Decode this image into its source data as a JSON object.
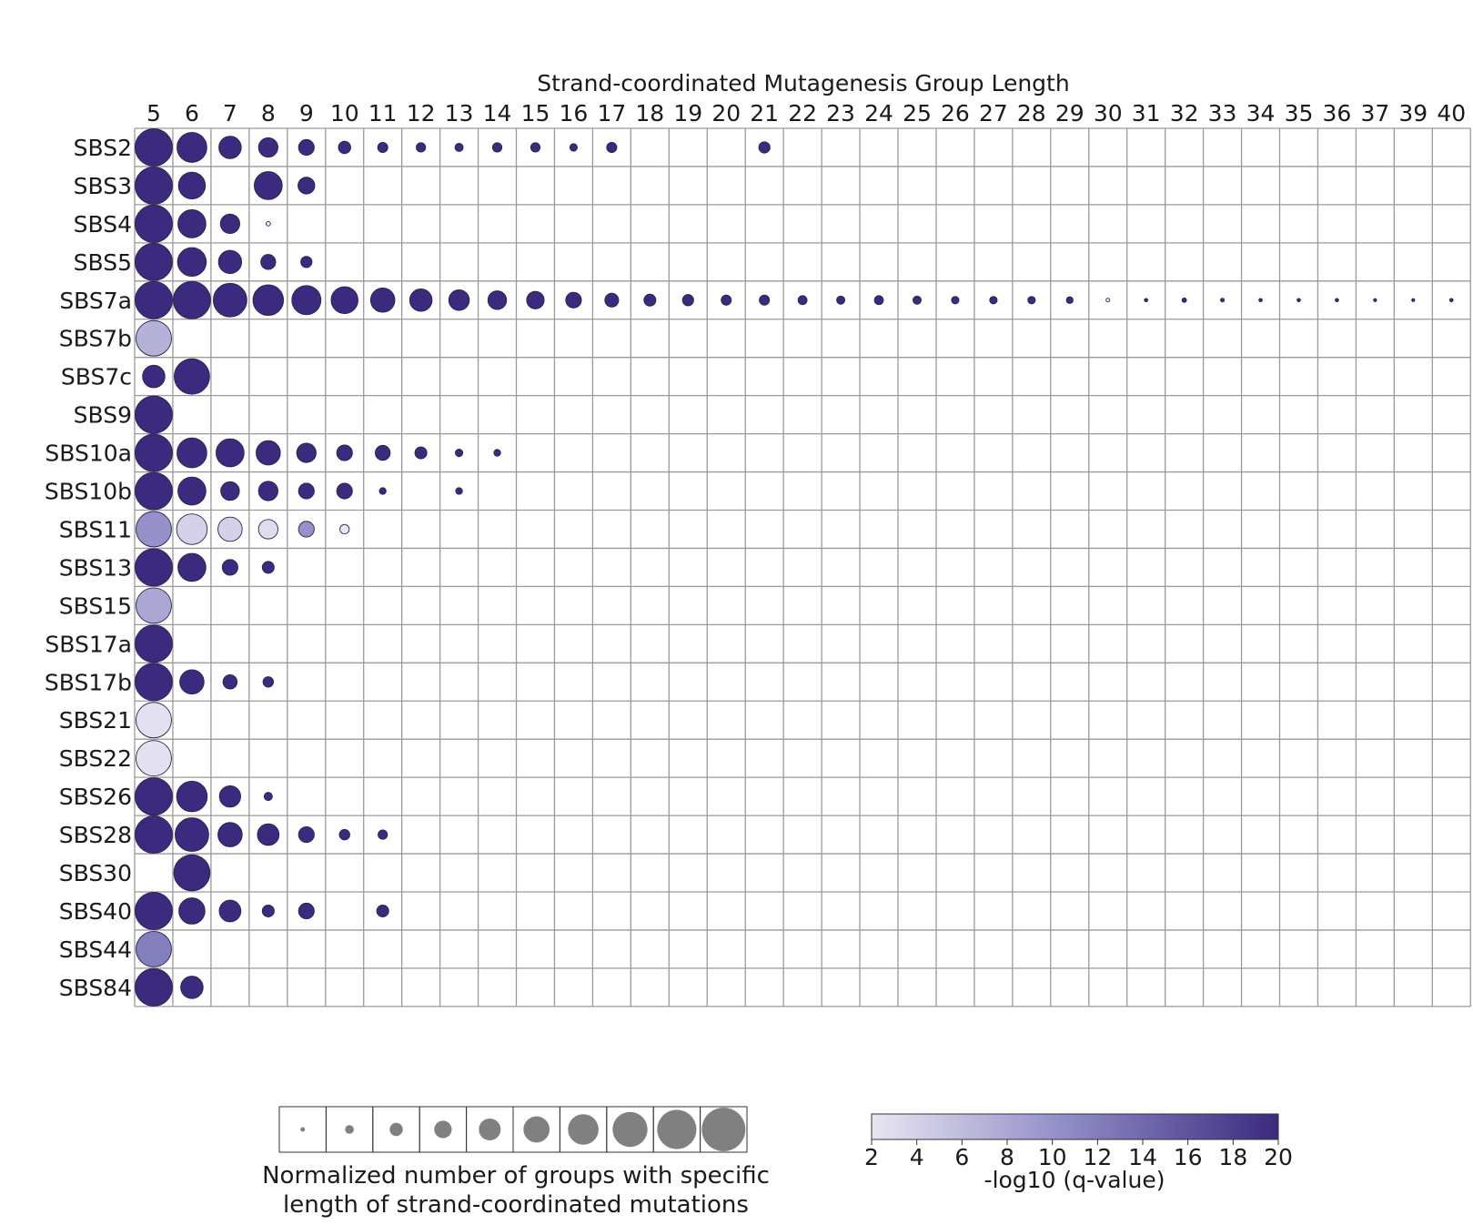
{
  "chart_data": {
    "type": "bubble-matrix",
    "title": "Strand-coordinated Mutagenesis Group Length",
    "x": [
      5,
      6,
      7,
      8,
      9,
      10,
      11,
      12,
      13,
      14,
      15,
      16,
      17,
      18,
      19,
      20,
      21,
      22,
      23,
      24,
      25,
      26,
      27,
      28,
      29,
      30,
      31,
      32,
      33,
      34,
      35,
      36,
      37,
      39,
      40
    ],
    "rows": [
      "SBS2",
      "SBS3",
      "SBS4",
      "SBS5",
      "SBS7a",
      "SBS7b",
      "SBS7c",
      "SBS9",
      "SBS10a",
      "SBS10b",
      "SBS11",
      "SBS13",
      "SBS15",
      "SBS17a",
      "SBS17b",
      "SBS21",
      "SBS22",
      "SBS26",
      "SBS28",
      "SBS30",
      "SBS40",
      "SBS44",
      "SBS84"
    ],
    "points_note": "each point: [row index, column index, normalized size 0-1, -log10(q-value)]",
    "points": [
      [
        0,
        0,
        1.0,
        20
      ],
      [
        0,
        1,
        0.8,
        20
      ],
      [
        0,
        2,
        0.6,
        20
      ],
      [
        0,
        3,
        0.52,
        20
      ],
      [
        0,
        4,
        0.42,
        20
      ],
      [
        0,
        5,
        0.33,
        20
      ],
      [
        0,
        6,
        0.27,
        20
      ],
      [
        0,
        7,
        0.25,
        20
      ],
      [
        0,
        8,
        0.22,
        20
      ],
      [
        0,
        9,
        0.25,
        20
      ],
      [
        0,
        10,
        0.25,
        20
      ],
      [
        0,
        11,
        0.2,
        20
      ],
      [
        0,
        12,
        0.27,
        20
      ],
      [
        0,
        16,
        0.3,
        20
      ],
      [
        1,
        0,
        1.0,
        20
      ],
      [
        1,
        1,
        0.72,
        20
      ],
      [
        1,
        3,
        0.75,
        20
      ],
      [
        1,
        4,
        0.45,
        20
      ],
      [
        2,
        0,
        1.0,
        20
      ],
      [
        2,
        1,
        0.75,
        20
      ],
      [
        2,
        2,
        0.52,
        20
      ],
      [
        2,
        3,
        0.12,
        2
      ],
      [
        3,
        0,
        1.0,
        20
      ],
      [
        3,
        1,
        0.77,
        20
      ],
      [
        3,
        2,
        0.62,
        20
      ],
      [
        3,
        3,
        0.4,
        20
      ],
      [
        3,
        4,
        0.3,
        20
      ],
      [
        4,
        0,
        1.0,
        20
      ],
      [
        4,
        1,
        1.0,
        20
      ],
      [
        4,
        2,
        0.9,
        20
      ],
      [
        4,
        3,
        0.82,
        20
      ],
      [
        4,
        4,
        0.78,
        20
      ],
      [
        4,
        5,
        0.72,
        20
      ],
      [
        4,
        6,
        0.65,
        20
      ],
      [
        4,
        7,
        0.6,
        20
      ],
      [
        4,
        8,
        0.55,
        20
      ],
      [
        4,
        9,
        0.5,
        20
      ],
      [
        4,
        10,
        0.47,
        20
      ],
      [
        4,
        11,
        0.42,
        20
      ],
      [
        4,
        12,
        0.37,
        20
      ],
      [
        4,
        13,
        0.32,
        20
      ],
      [
        4,
        14,
        0.3,
        20
      ],
      [
        4,
        15,
        0.27,
        20
      ],
      [
        4,
        16,
        0.27,
        20
      ],
      [
        4,
        17,
        0.24,
        20
      ],
      [
        4,
        18,
        0.22,
        20
      ],
      [
        4,
        19,
        0.24,
        20
      ],
      [
        4,
        20,
        0.22,
        20
      ],
      [
        4,
        21,
        0.2,
        20
      ],
      [
        4,
        22,
        0.2,
        20
      ],
      [
        4,
        23,
        0.2,
        20
      ],
      [
        4,
        24,
        0.18,
        20
      ],
      [
        4,
        25,
        0.1,
        2
      ],
      [
        4,
        26,
        0.09,
        20
      ],
      [
        4,
        27,
        0.12,
        20
      ],
      [
        4,
        28,
        0.1,
        20
      ],
      [
        4,
        29,
        0.09,
        20
      ],
      [
        4,
        30,
        0.09,
        20
      ],
      [
        4,
        31,
        0.09,
        20
      ],
      [
        4,
        32,
        0.08,
        20
      ],
      [
        4,
        33,
        0.08,
        20
      ],
      [
        4,
        34,
        0.09,
        20
      ],
      [
        5,
        0,
        0.95,
        7
      ],
      [
        6,
        0,
        0.6,
        20
      ],
      [
        6,
        1,
        0.95,
        20
      ],
      [
        7,
        0,
        1.0,
        20
      ],
      [
        8,
        0,
        1.0,
        20
      ],
      [
        8,
        1,
        0.8,
        20
      ],
      [
        8,
        2,
        0.75,
        20
      ],
      [
        8,
        3,
        0.65,
        20
      ],
      [
        8,
        4,
        0.52,
        20
      ],
      [
        8,
        5,
        0.42,
        20
      ],
      [
        8,
        6,
        0.4,
        20
      ],
      [
        8,
        7,
        0.32,
        20
      ],
      [
        8,
        8,
        0.2,
        20
      ],
      [
        8,
        9,
        0.18,
        20
      ],
      [
        9,
        0,
        1.0,
        20
      ],
      [
        9,
        1,
        0.75,
        20
      ],
      [
        9,
        2,
        0.5,
        20
      ],
      [
        9,
        3,
        0.52,
        20
      ],
      [
        9,
        4,
        0.42,
        20
      ],
      [
        9,
        5,
        0.42,
        20
      ],
      [
        9,
        6,
        0.18,
        20
      ],
      [
        9,
        8,
        0.18,
        20
      ],
      [
        10,
        0,
        0.95,
        10
      ],
      [
        10,
        1,
        0.82,
        4
      ],
      [
        10,
        2,
        0.65,
        4
      ],
      [
        10,
        3,
        0.52,
        3
      ],
      [
        10,
        4,
        0.42,
        10
      ],
      [
        10,
        5,
        0.25,
        2
      ],
      [
        11,
        0,
        1.0,
        20
      ],
      [
        11,
        1,
        0.75,
        20
      ],
      [
        11,
        2,
        0.42,
        20
      ],
      [
        11,
        3,
        0.32,
        20
      ],
      [
        12,
        0,
        0.95,
        8
      ],
      [
        13,
        0,
        1.0,
        20
      ],
      [
        14,
        0,
        1.0,
        20
      ],
      [
        14,
        1,
        0.65,
        20
      ],
      [
        14,
        2,
        0.38,
        20
      ],
      [
        14,
        3,
        0.28,
        20
      ],
      [
        15,
        0,
        0.95,
        2.5
      ],
      [
        16,
        0,
        0.95,
        2.5
      ],
      [
        17,
        0,
        1.0,
        20
      ],
      [
        17,
        1,
        0.82,
        20
      ],
      [
        17,
        2,
        0.57,
        20
      ],
      [
        17,
        3,
        0.22,
        20
      ],
      [
        18,
        0,
        1.0,
        20
      ],
      [
        18,
        1,
        0.9,
        20
      ],
      [
        18,
        2,
        0.65,
        20
      ],
      [
        18,
        3,
        0.58,
        20
      ],
      [
        18,
        4,
        0.42,
        20
      ],
      [
        18,
        5,
        0.28,
        20
      ],
      [
        18,
        6,
        0.25,
        20
      ],
      [
        19,
        1,
        0.97,
        20
      ],
      [
        20,
        0,
        1.0,
        20
      ],
      [
        20,
        1,
        0.7,
        20
      ],
      [
        20,
        2,
        0.58,
        20
      ],
      [
        20,
        3,
        0.32,
        20
      ],
      [
        20,
        4,
        0.42,
        20
      ],
      [
        20,
        6,
        0.32,
        20
      ],
      [
        21,
        0,
        0.95,
        12
      ],
      [
        22,
        0,
        1.0,
        20
      ],
      [
        22,
        1,
        0.6,
        20
      ]
    ],
    "size_legend": {
      "label_line1": "Normalized number of groups with specific",
      "label_line2": "length of strand-coordinated mutations",
      "steps": [
        0.1,
        0.2,
        0.3,
        0.4,
        0.5,
        0.6,
        0.7,
        0.8,
        0.9,
        1.0
      ]
    },
    "color_legend": {
      "label": "-log10 (q-value)",
      "min": 2,
      "max": 20,
      "ticks": [
        "2",
        "4",
        "6",
        "8",
        "10",
        "12",
        "14",
        "16",
        "18",
        "20"
      ],
      "color_low": "#e8e6f2",
      "color_mid": "#8c88c4",
      "color_high": "#3b2a7e"
    },
    "grid": true
  }
}
